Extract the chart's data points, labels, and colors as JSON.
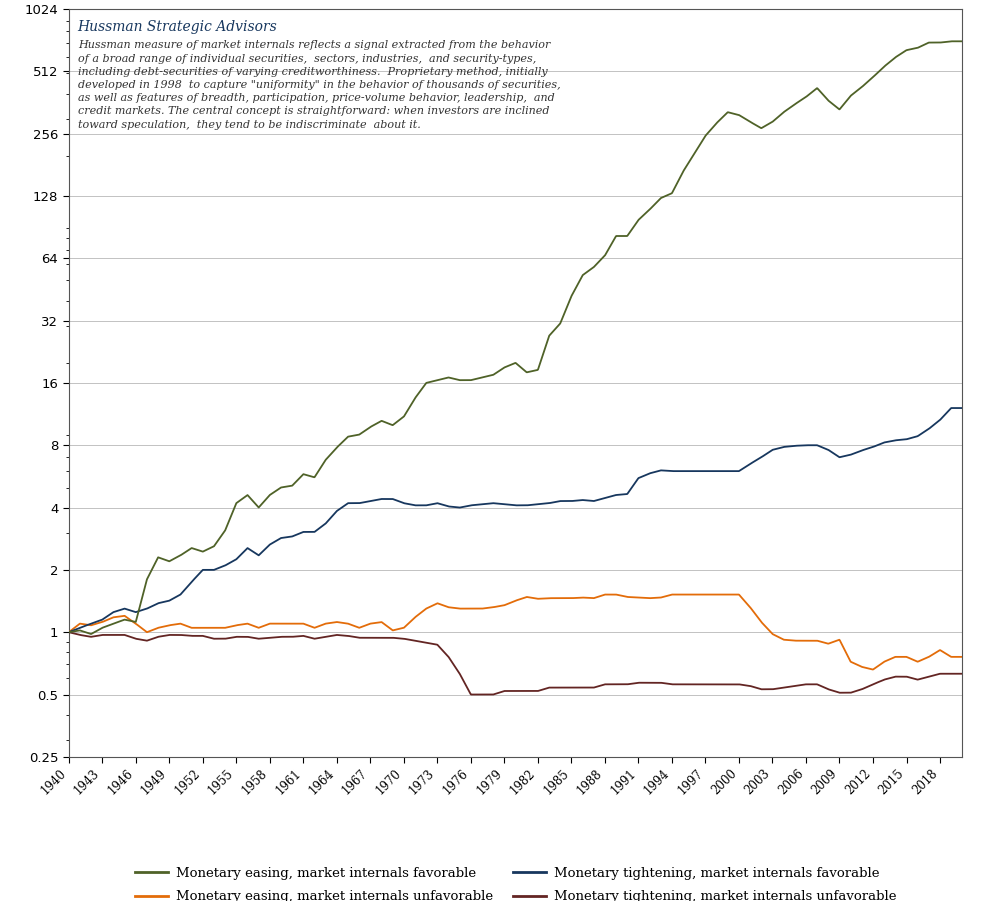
{
  "title": "Hussman Strategic Advisors",
  "annotation_line1": "Hussman measure of market internals reflects a signal extracted from the behavior",
  "annotation_line2": "of a broad range of individual securities,  sectors, industries,  and security-types,",
  "annotation_line3": "including debt-securities of varying creditworthiness.  Proprietary method, initially",
  "annotation_line4": "developed in 1998  to capture \"uniformity\" in the behavior of thousands of securities,",
  "annotation_line5": "as well as features of breadth, participation, price-volume behavior, leadership,  and",
  "annotation_line6": "credit markets. The central concept is straightforward: when investors are inclined",
  "annotation_line7": "toward speculation,  they tend to be indiscriminate  about it.",
  "yticks": [
    0.25,
    0.5,
    1,
    2,
    4,
    8,
    16,
    32,
    64,
    128,
    256,
    512,
    1024
  ],
  "ylim": [
    0.25,
    1024
  ],
  "xticks": [
    1940,
    1943,
    1946,
    1949,
    1952,
    1955,
    1958,
    1961,
    1964,
    1967,
    1970,
    1973,
    1976,
    1979,
    1982,
    1985,
    1988,
    1991,
    1994,
    1997,
    2000,
    2003,
    2006,
    2009,
    2012,
    2015,
    2018
  ],
  "xlim": [
    1940,
    2020
  ],
  "colors": {
    "easing_favorable": "#4f6228",
    "easing_unfavorable": "#e36c09",
    "tightening_favorable": "#17375e",
    "tightening_unfavorable": "#632523"
  },
  "legend": [
    {
      "label": "Monetary easing, market internals favorable",
      "color": "#4f6228"
    },
    {
      "label": "Monetary easing, market internals unfavorable",
      "color": "#e36c09"
    },
    {
      "label": "Monetary tightening, market internals favorable",
      "color": "#17375e"
    },
    {
      "label": "Monetary tightening, market internals unfavorable",
      "color": "#632523"
    }
  ],
  "background_color": "#ffffff",
  "grid_color": "#999999",
  "title_color": "#17375e",
  "annotation_color": "#333333"
}
